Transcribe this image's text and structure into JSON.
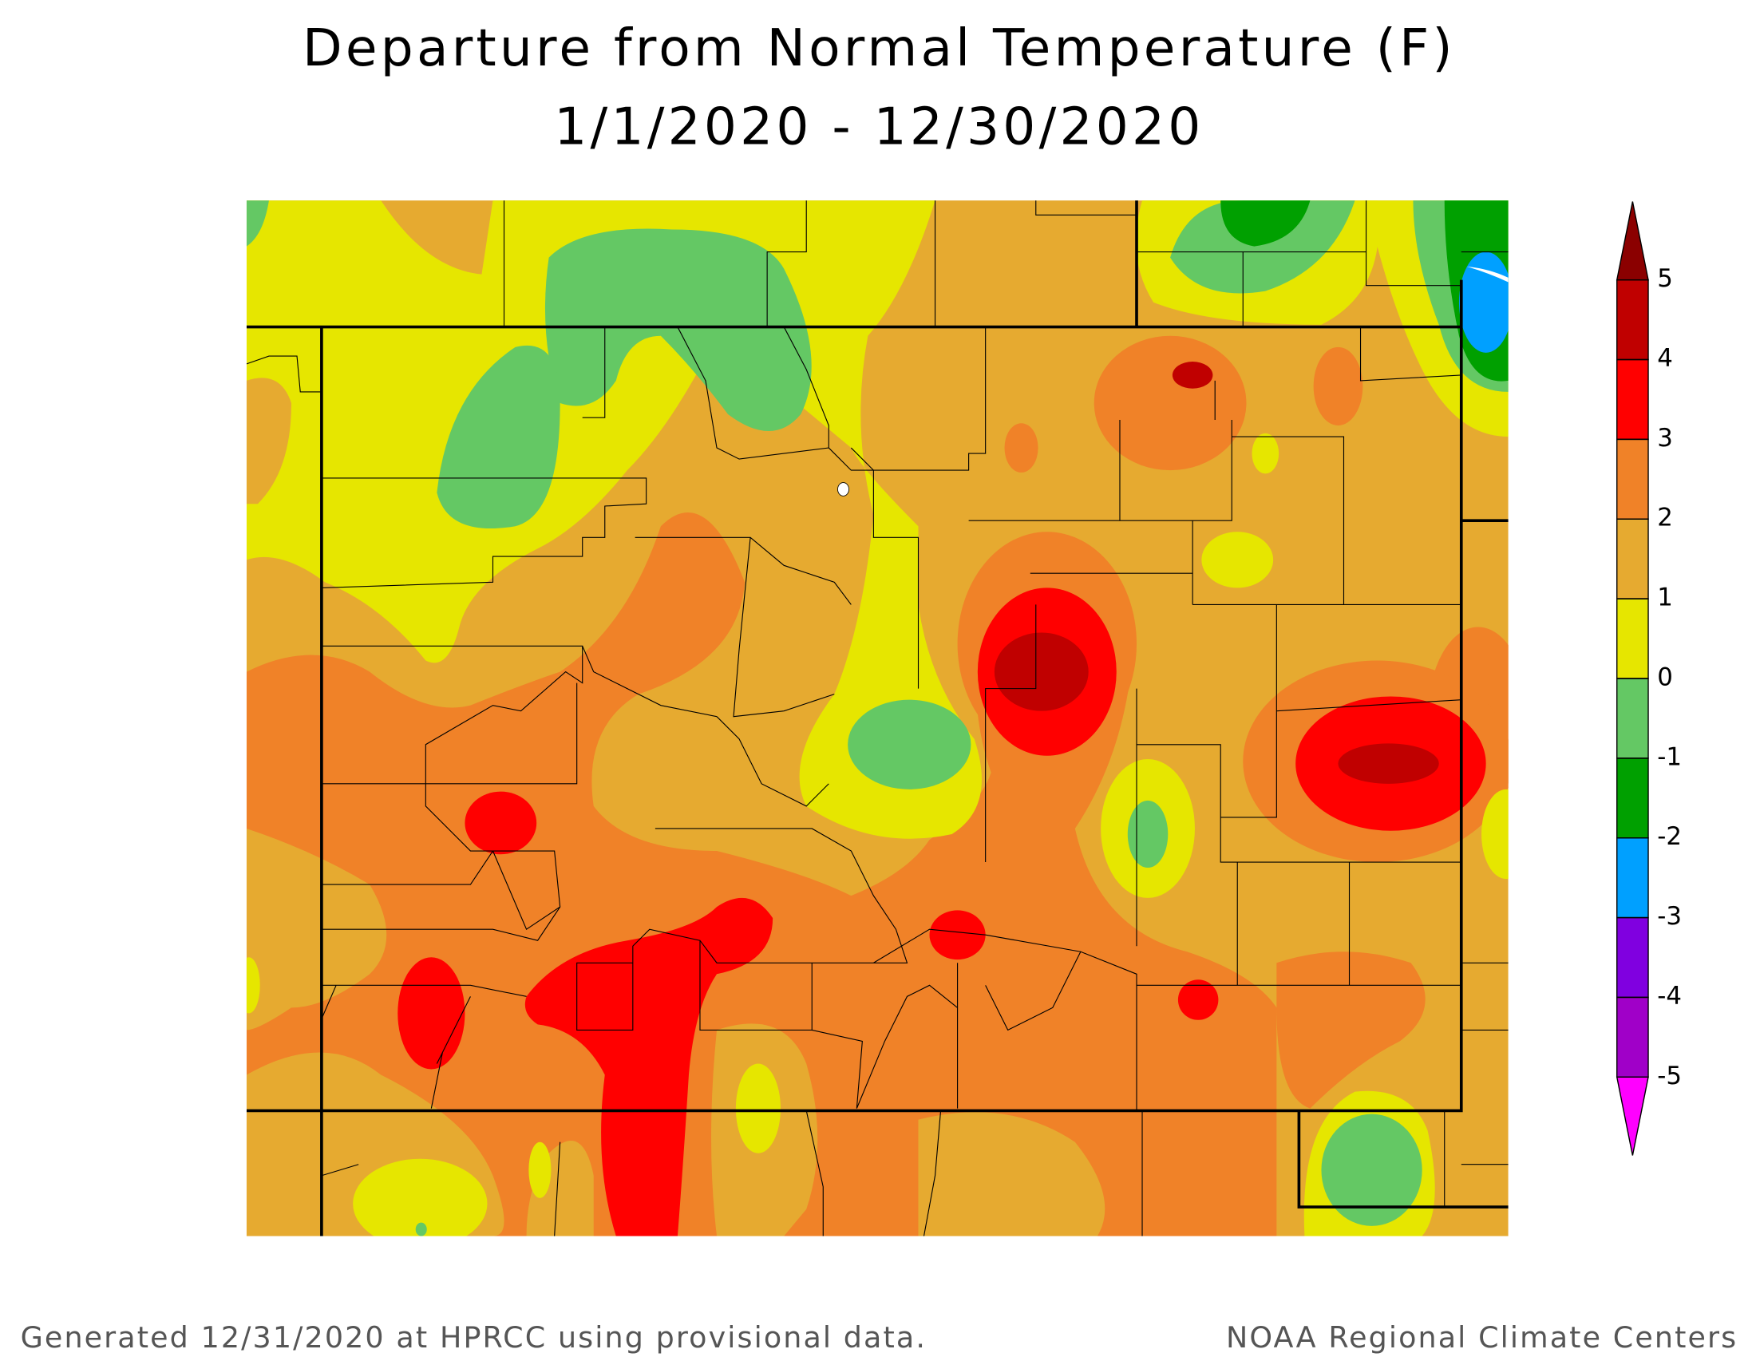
{
  "title": "Departure from Normal Temperature (F)",
  "subtitle": "1/1/2020 - 12/30/2020",
  "legend": {
    "ticks": [
      5,
      4,
      3,
      2,
      1,
      0,
      -1,
      -2,
      -3,
      -4,
      -5
    ],
    "colors": [
      "#8b0000",
      "#c00000",
      "#ff0000",
      "#f08228",
      "#e6aa30",
      "#e6e600",
      "#64c864",
      "#00a000",
      "#00a0ff",
      "#8000e0",
      "#a000c8",
      "#ff00ff"
    ]
  },
  "footer": {
    "left": "Generated 12/31/2020 at HPRCC using provisional data.",
    "right": "NOAA Regional Climate Centers"
  }
}
